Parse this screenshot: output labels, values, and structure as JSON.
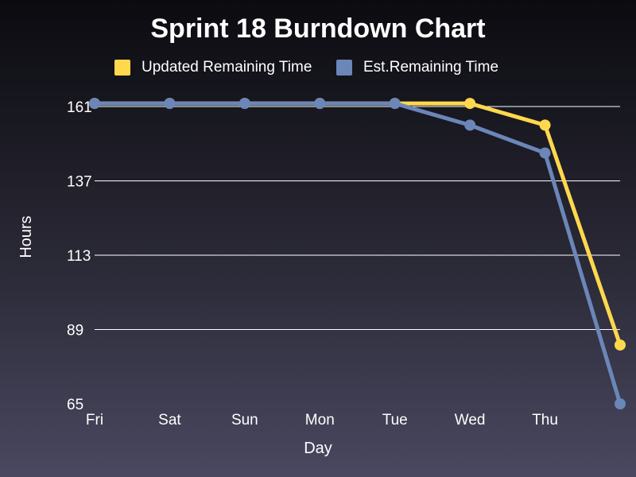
{
  "colors": {
    "updated": "#ffd84d",
    "estimated": "#6b86b8",
    "grid": "#ffffff",
    "text": "#ffffff"
  },
  "chart_data": {
    "type": "line",
    "title": "Sprint 18 Burndown Chart",
    "xlabel": "Day",
    "ylabel": "Hours",
    "categories": [
      "Fri",
      "Sat",
      "Sun",
      "Mon",
      "Tue",
      "Wed",
      "Thu",
      ""
    ],
    "yticks": [
      161,
      137,
      113,
      89,
      65
    ],
    "ylim": [
      65,
      161
    ],
    "grid": true,
    "legend": "top-center",
    "series": [
      {
        "name": "Updated Remaining Time",
        "color": "#ffd84d",
        "values": [
          162,
          162,
          162,
          162,
          162,
          162,
          155,
          84
        ]
      },
      {
        "name": "Est.Remaining Time",
        "color": "#6b86b8",
        "values": [
          162,
          162,
          162,
          162,
          162,
          155,
          146,
          65
        ]
      }
    ]
  }
}
